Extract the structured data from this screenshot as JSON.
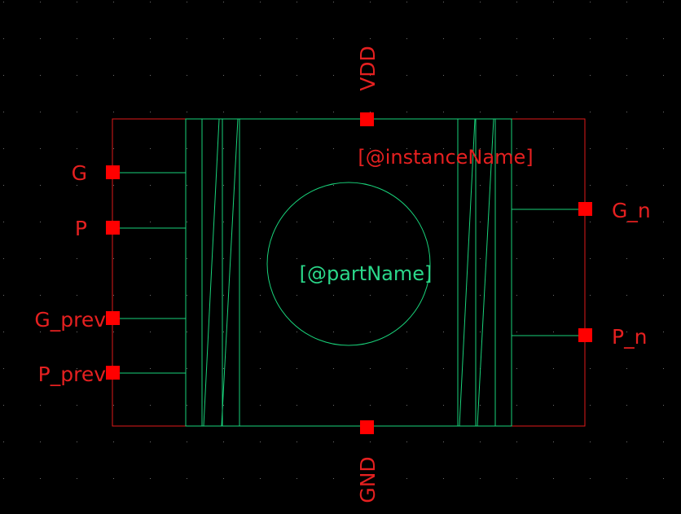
{
  "colors": {
    "background": "#000000",
    "pin": "#ff0000",
    "outline": "#e01a1a",
    "device": "#19d27a",
    "text_red": "#e52020",
    "text_green": "#2bd88a",
    "grid_dot": "#707070"
  },
  "pins": {
    "vdd": "VDD",
    "gnd": "GND",
    "g": "G",
    "p": "P",
    "g_prev": "G_prev",
    "p_prev": "P_prev",
    "g_n": "G_n",
    "p_n": "P_n"
  },
  "symbol": {
    "instance_name": "[@instanceName]",
    "part_name": "[@partName]"
  }
}
